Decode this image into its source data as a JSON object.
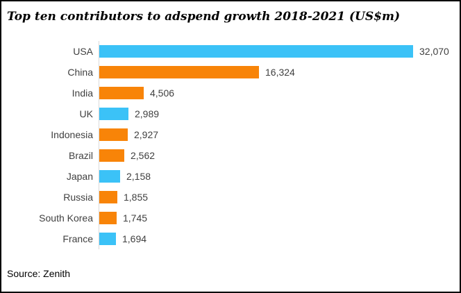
{
  "chart_data": {
    "type": "bar",
    "orientation": "horizontal",
    "title": "Top ten contributors to adspend growth 2018-2021 (US$m)",
    "source": "Source: Zenith",
    "categories": [
      "USA",
      "China",
      "India",
      "UK",
      "Indonesia",
      "Brazil",
      "Japan",
      "Russia",
      "South Korea",
      "France"
    ],
    "values": [
      32070,
      16324,
      4506,
      2989,
      2927,
      2562,
      2158,
      1855,
      1745,
      1694
    ],
    "value_labels": [
      "32,070",
      "16,324",
      "4,506",
      "2,989",
      "2,927",
      "2,562",
      "2,158",
      "1,855",
      "1,745",
      "1,694"
    ],
    "bar_colors": [
      "blue",
      "orange",
      "orange",
      "blue",
      "orange",
      "orange",
      "blue",
      "orange",
      "orange",
      "blue"
    ],
    "palette": {
      "blue": "#3bc2f7",
      "orange": "#f88408"
    },
    "xlim": [
      0,
      32070
    ],
    "axis_line_color": "#d9d9d9",
    "label_color": "#404040",
    "legend": "none",
    "grid": "off",
    "data_labels": "outside-end"
  }
}
